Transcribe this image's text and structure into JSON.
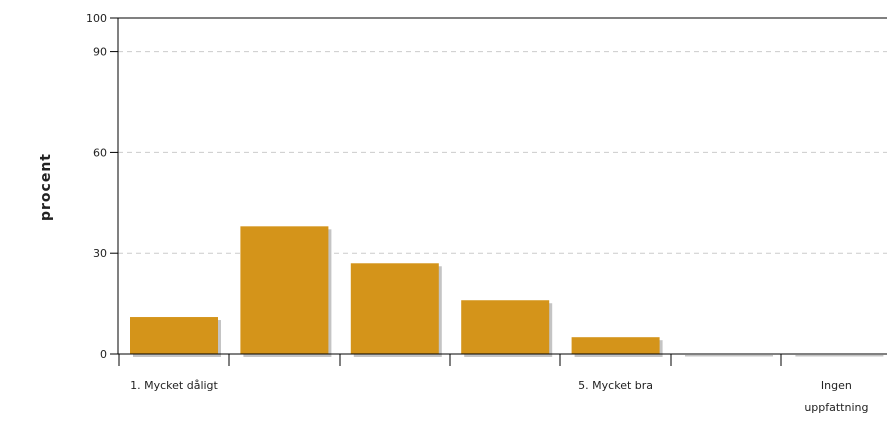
{
  "chart_data": {
    "type": "bar",
    "categories": [
      "1. Mycket dåligt",
      "",
      "",
      "",
      "5. Mycket bra",
      "",
      "Ingen uppfattning"
    ],
    "category_label_lines": [
      [
        "1. Mycket dåligt"
      ],
      [],
      [],
      [],
      [
        "5. Mycket bra"
      ],
      [],
      [
        "Ingen",
        "uppfattning"
      ]
    ],
    "values": [
      11,
      38,
      27,
      16,
      5,
      0,
      0
    ],
    "ylabel": "procent",
    "xlabel": "",
    "ylim": [
      0,
      100
    ],
    "yticks": [
      0,
      30,
      60,
      90,
      100
    ],
    "grid": true,
    "colors": {
      "bar": "#d4941a",
      "shadow": "#c4c4c4",
      "axis": "#000000",
      "grid": "#cccccc"
    }
  }
}
